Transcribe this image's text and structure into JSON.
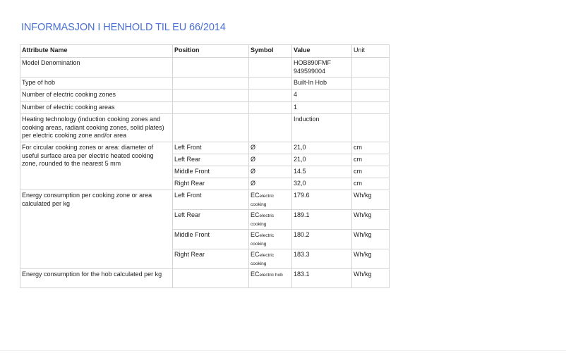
{
  "title": "INFORMASJON I HENHOLD TIL EU 66/2014",
  "headers": [
    "Attribute Name",
    "Position",
    "Symbol",
    "Value",
    "Unit"
  ],
  "rows": {
    "model": {
      "name": "Model Denomination",
      "value1": "HOB890FMF",
      "value2": "949599004"
    },
    "type": {
      "name": "Type of hob",
      "value": "Built-In Hob"
    },
    "zones": {
      "name": "Number of electric cooking zones",
      "value": "4"
    },
    "areas": {
      "name": "Number of electric cooking areas",
      "value": "1"
    },
    "heating": {
      "name": "Heating technology (induction cooking zones and cooking areas, radiant cooking zones, solid plates) per electric cooking zone and/or area",
      "value": "Induction"
    },
    "diameter": {
      "name": "For circular cooking zones or area: diameter of useful surface area per electric heated cooking zone, rounded to the nearest 5 mm",
      "items": [
        {
          "position": "Left Front",
          "symbol": "Ø",
          "value": "21,0",
          "unit": "cm"
        },
        {
          "position": "Left Rear",
          "symbol": "Ø",
          "value": "21,0",
          "unit": "cm"
        },
        {
          "position": "Middle Front",
          "symbol": "Ø",
          "value": "14.5",
          "unit": "cm"
        },
        {
          "position": "Right Rear",
          "symbol": "Ø",
          "value": "32,0",
          "unit": "cm"
        }
      ]
    },
    "energy_zone": {
      "name": "Energy consumption per cooking zone or area calculated per kg",
      "items": [
        {
          "position": "Left Front",
          "symbol": "EC",
          "symbol_sub": "electric cooking",
          "value": "179.6",
          "unit": "Wh/kg"
        },
        {
          "position": "Left Rear",
          "symbol": "EC",
          "symbol_sub": "electric cooking",
          "value": "189.1",
          "unit": "Wh/kg"
        },
        {
          "position": "Middle Front",
          "symbol": "EC",
          "symbol_sub": "electric cooking",
          "value": "180.2",
          "unit": "Wh/kg"
        },
        {
          "position": "Right Rear",
          "symbol": "EC",
          "symbol_sub": "electric cooking",
          "value": "183.3",
          "unit": "Wh/kg"
        }
      ]
    },
    "energy_hob": {
      "name": "Energy consumption for the hob calculated per kg",
      "symbol": "EC",
      "symbol_sub": "electric hob",
      "value": "183.1",
      "unit": "Wh/kg"
    }
  }
}
